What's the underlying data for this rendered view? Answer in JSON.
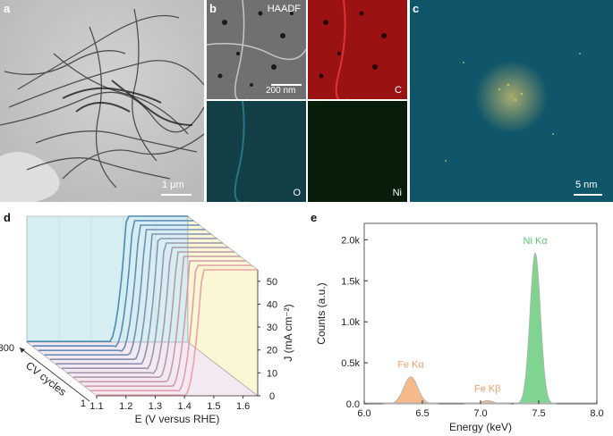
{
  "panels": {
    "a": {
      "label": "a",
      "scale": "1 μm"
    },
    "b": {
      "label": "b",
      "maps": [
        {
          "tag": "HAADF",
          "color": "#c8c8c8"
        },
        {
          "tag": "C",
          "color": "#e02020"
        },
        {
          "tag": "O",
          "color": "#2aa8b8"
        },
        {
          "tag": "Ni",
          "color": "#2ea83a"
        }
      ],
      "scale": "200 nm"
    },
    "c": {
      "label": "c",
      "scale": "5 nm"
    },
    "d": {
      "label": "d"
    },
    "e": {
      "label": "e"
    }
  },
  "chart_data": [
    {
      "panel": "d",
      "type": "line",
      "xlabel": "E (V versus RHE)",
      "ylabel": "J (mA cm⁻²)",
      "zlabel": "CV cycles",
      "x_ticks": [
        "1.1",
        "1.2",
        "1.3",
        "1.4",
        "1.5",
        "1.6"
      ],
      "y_ticks": [
        "0",
        "10",
        "20",
        "30",
        "40",
        "50"
      ],
      "z_ticks": [
        "1",
        "300"
      ],
      "xlim": [
        1.1,
        1.65
      ],
      "ylim": [
        0,
        55
      ],
      "series_count": 13,
      "colors": {
        "first": "#4a8ab8",
        "last": "#f0a0a8"
      }
    },
    {
      "panel": "e",
      "type": "area",
      "xlabel": "Energy (keV)",
      "ylabel": "Counts (a.u.)",
      "x_ticks": [
        "6.0",
        "6.5",
        "7.0",
        "7.5",
        "8.0"
      ],
      "y_ticks": [
        "0.0",
        "0.5k",
        "1.0k",
        "1.5k",
        "2.0k"
      ],
      "xlim": [
        6.0,
        8.0
      ],
      "ylim": [
        0,
        2200
      ],
      "peaks": [
        {
          "name": "Fe Kα",
          "energy": 6.4,
          "counts": 330,
          "color": "#f5b98a",
          "label_color": "#f0a070"
        },
        {
          "name": "Fe Kβ",
          "energy": 7.06,
          "counts": 40,
          "color": "#f5b98a",
          "label_color": "#f0a070"
        },
        {
          "name": "Ni Kα",
          "energy": 7.47,
          "counts": 1840,
          "color": "#7fd490",
          "label_color": "#5cc872"
        }
      ],
      "background_color": "#b0b0b0"
    }
  ]
}
